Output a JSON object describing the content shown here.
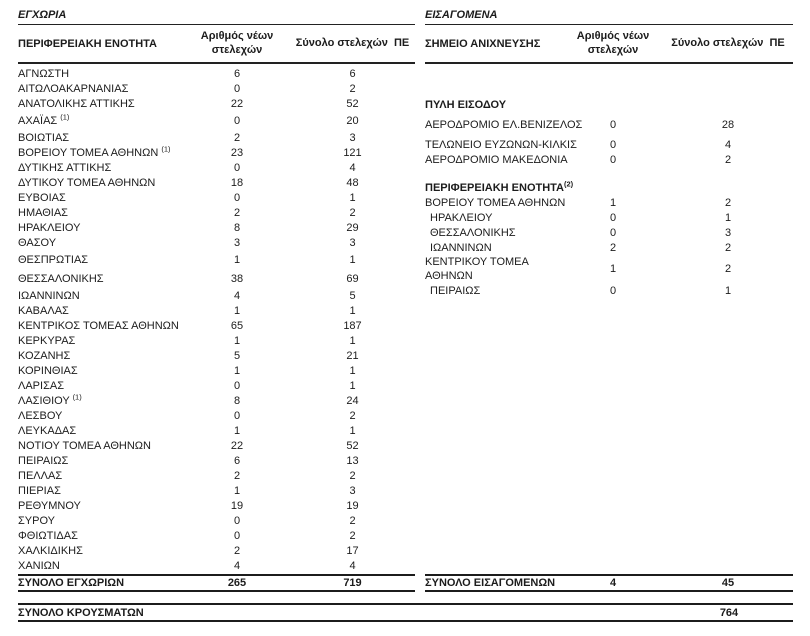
{
  "page": {
    "grand_total_label": "ΣΥΝΟΛΟ ΚΡΟΥΣΜΑΤΩΝ",
    "grand_total_value": "764"
  },
  "domestic": {
    "section_title": "ΕΓΧΩΡΙΑ",
    "columns": {
      "name": "ΠΕΡΙΦΕΡΕΙΑΚΗ ΕΝΟΤΗΤΑ",
      "new": "Αριθμός νέων στελεχών",
      "total": "Σύνολο στελεχών  ΠΕ"
    },
    "rows": [
      {
        "name": "ΑΓΝΩΣΤΗ",
        "new": "6",
        "total": "6"
      },
      {
        "name": "ΑΙΤΩΛΟΑΚΑΡΝΑΝΙΑΣ",
        "new": "0",
        "total": "2"
      },
      {
        "name": "ΑΝΑΤΟΛΙΚΗΣ ΑΤΤΙΚΗΣ",
        "new": "22",
        "total": "52"
      },
      {
        "name": "ΑΧΑΪΑΣ ",
        "sup": "(1)",
        "new": "0",
        "total": "20",
        "extra_space": true
      },
      {
        "name": "ΒΟΙΩΤΙΑΣ",
        "new": "2",
        "total": "3"
      },
      {
        "name": "ΒΟΡΕΙΟΥ ΤΟΜΕΑ ΑΘΗΝΩΝ ",
        "sup": "(1)",
        "new": "23",
        "total": "121"
      },
      {
        "name": "ΔΥΤΙΚΗΣ ΑΤΤΙΚΗΣ",
        "new": "0",
        "total": "4"
      },
      {
        "name": "ΔΥΤΙΚΟΥ ΤΟΜΕΑ ΑΘΗΝΩΝ",
        "new": "18",
        "total": "48"
      },
      {
        "name": "ΕΥΒΟΙΑΣ",
        "new": "0",
        "total": "1"
      },
      {
        "name": "ΗΜΑΘΙΑΣ",
        "new": "2",
        "total": "2"
      },
      {
        "name": "ΗΡΑΚΛΕΙΟΥ",
        "new": "8",
        "total": "29"
      },
      {
        "name": "ΘΑΣΟΥ",
        "new": "3",
        "total": "3"
      },
      {
        "name": "ΘΕΣΠΡΩΤΙΑΣ",
        "new": "1",
        "total": "1",
        "extra_space": true
      },
      {
        "name": "ΘΕΣΣΑΛΟΝΙΚΗΣ",
        "new": "38",
        "total": "69",
        "extra_space": true
      },
      {
        "name": "ΙΩΑΝΝΙΝΩΝ",
        "new": "4",
        "total": "5"
      },
      {
        "name": "ΚΑΒΑΛΑΣ",
        "new": "1",
        "total": "1"
      },
      {
        "name": "ΚΕΝΤΡΙΚΟΣ ΤΟΜΕΑΣ ΑΘΗΝΩΝ",
        "new": "65",
        "total": "187"
      },
      {
        "name": "ΚΕΡΚΥΡΑΣ",
        "new": "1",
        "total": "1"
      },
      {
        "name": "ΚΟΖΑΝΗΣ",
        "new": "5",
        "total": "21"
      },
      {
        "name": "ΚΟΡΙΝΘΙΑΣ",
        "new": "1",
        "total": "1"
      },
      {
        "name": "ΛΑΡΙΣΑΣ",
        "new": "0",
        "total": "1"
      },
      {
        "name": "ΛΑΣΙΘΙΟΥ ",
        "sup": "(1)",
        "new": "8",
        "total": "24"
      },
      {
        "name": "ΛΕΣΒΟΥ",
        "new": "0",
        "total": "2"
      },
      {
        "name": "ΛΕΥΚΑΔΑΣ",
        "new": "1",
        "total": "1"
      },
      {
        "name": "ΝΟΤΙΟΥ ΤΟΜΕΑ ΑΘΗΝΩΝ",
        "new": "22",
        "total": "52"
      },
      {
        "name": "ΠΕΙΡΑΙΩΣ",
        "new": "6",
        "total": "13"
      },
      {
        "name": "ΠΕΛΛΑΣ",
        "new": "2",
        "total": "2"
      },
      {
        "name": "ΠΙΕΡΙΑΣ",
        "new": "1",
        "total": "3"
      },
      {
        "name": "ΡΕΘΥΜΝΟΥ",
        "new": "19",
        "total": "19"
      },
      {
        "name": "ΣΥΡΟΥ",
        "new": "0",
        "total": "2"
      },
      {
        "name": "ΦΘΙΩΤΙΔΑΣ",
        "new": "0",
        "total": "2"
      },
      {
        "name": "ΧΑΛΚΙΔΙΚΗΣ",
        "new": "2",
        "total": "17"
      },
      {
        "name": "ΧΑΝΙΩΝ",
        "new": "4",
        "total": "4"
      }
    ],
    "total_row": {
      "name": "ΣΥΝΟΛΟ ΕΓΧΩΡΙΩΝ",
      "new": "265",
      "total": "719"
    }
  },
  "imported": {
    "section_title": "ΕΙΣΑΓΟΜΕΝΑ",
    "columns": {
      "name": "ΣΗΜΕΙΟ ΑΝΙΧΝΕΥΣΗΣ",
      "new": "Αριθμός νέων στελεχών",
      "total": "Σύνολο στελεχών  ΠΕ"
    },
    "groups": [
      {
        "header": "ΠΥΛΗ ΕΙΣΟΔΟΥ",
        "rows": [
          {
            "name": "ΑΕΡΟΔΡΟΜΙΟ ΕΛ.ΒΕΝΙΖΕΛΟΣ",
            "new": "0",
            "total": "28",
            "gap_above": true
          },
          {
            "name": "ΤΕΛΩΝΕΙΟ ΕΥΖΩΝΩΝ-ΚΙΛΚΙΣ",
            "new": "0",
            "total": "4",
            "gap_above": true
          },
          {
            "name": "ΑΕΡΟΔΡΟΜΙΟ ΜΑΚΕΔΟΝΙΑ",
            "new": "0",
            "total": "2"
          }
        ]
      },
      {
        "header": "ΠΕΡΙΦΕΡΕΙΑΚΗ ΕΝΟΤΗΤΑ",
        "header_sup": "(2)",
        "rows": [
          {
            "name": "ΒΟΡΕΙΟΥ ΤΟΜΕΑ ΑΘΗΝΩΝ",
            "new": "1",
            "total": "2"
          },
          {
            "name": "ΗΡΑΚΛΕΙΟΥ",
            "new": "0",
            "total": "1",
            "indent": true
          },
          {
            "name": "ΘΕΣΣΑΛΟΝΙΚΗΣ",
            "new": "0",
            "total": "3",
            "indent": true
          },
          {
            "name": "ΙΩΑΝΝΙΝΩΝ",
            "new": "2",
            "total": "2",
            "indent": true
          },
          {
            "name": "ΚΕΝΤΡΙΚΟΥ ΤΟΜΕΑ\nΑΘΗΝΩΝ",
            "new": "1",
            "total": "2",
            "wrap": true
          },
          {
            "name": "ΠΕΙΡΑΙΩΣ",
            "new": "0",
            "total": "1",
            "indent": true
          }
        ]
      }
    ],
    "total_row": {
      "name": "ΣΥΝΟΛΟ ΕΙΣΑΓΟΜΕΝΩΝ",
      "new": "4",
      "total": "45"
    }
  }
}
